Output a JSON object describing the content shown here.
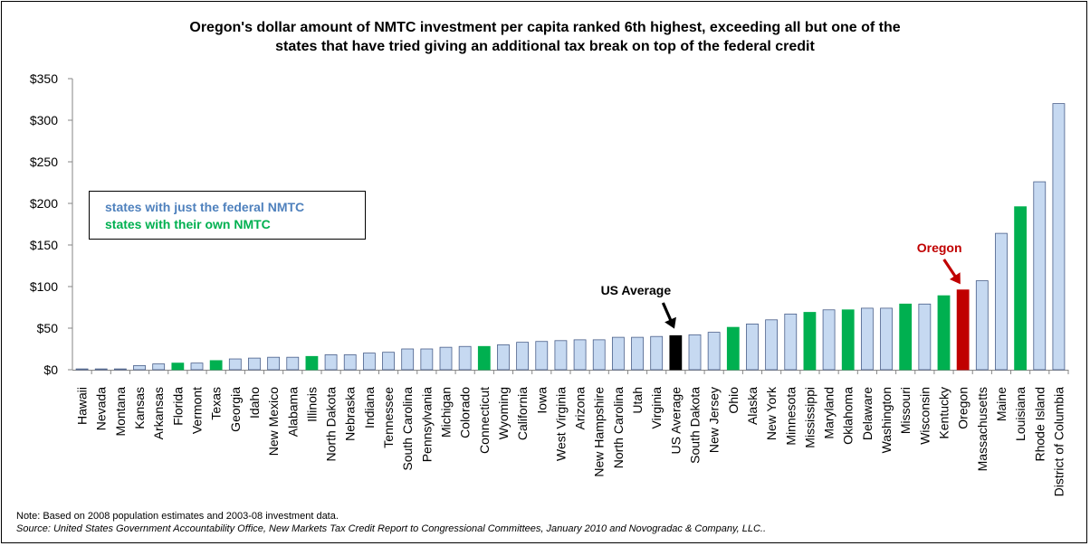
{
  "chart_data": {
    "type": "bar",
    "title": "Oregon's dollar amount of NMTC investment per capita ranked 6th highest, exceeding all but one of the states that have tried giving an additional tax break on top of the federal credit",
    "title_lines": [
      "Oregon's dollar amount of NMTC investment per capita ranked 6th highest, exceeding all but one of the",
      "states that have tried giving an additional tax break on top of the federal credit"
    ],
    "ylim": [
      0,
      350
    ],
    "yticks": [
      "$0",
      "$50",
      "$100",
      "$150",
      "$200",
      "$250",
      "$300",
      "$350"
    ],
    "ytick_values": [
      0,
      50,
      100,
      150,
      200,
      250,
      300,
      350
    ],
    "grid": false,
    "legend_placement": "upper-left",
    "legend": [
      {
        "label": "states with just the federal NMTC",
        "color": "#4f81bd"
      },
      {
        "label": "states with their own NMTC",
        "color": "#00b050"
      }
    ],
    "colors": {
      "federal_fill": "#c6d9f1",
      "federal_stroke": "#4a5f8a",
      "own": "#00b050",
      "average": "#000000",
      "oregon": "#c00000"
    },
    "categories": [
      {
        "name": "Hawaii",
        "value": 1,
        "group": "federal"
      },
      {
        "name": "Nevada",
        "value": 1,
        "group": "federal"
      },
      {
        "name": "Montana",
        "value": 1,
        "group": "federal"
      },
      {
        "name": "Kansas",
        "value": 5,
        "group": "federal"
      },
      {
        "name": "Arkansas",
        "value": 7,
        "group": "federal"
      },
      {
        "name": "Florida",
        "value": 8,
        "group": "own"
      },
      {
        "name": "Vermont",
        "value": 8,
        "group": "federal"
      },
      {
        "name": "Texas",
        "value": 11,
        "group": "own"
      },
      {
        "name": "Georgia",
        "value": 13,
        "group": "federal"
      },
      {
        "name": "Idaho",
        "value": 14,
        "group": "federal"
      },
      {
        "name": "New Mexico",
        "value": 15,
        "group": "federal"
      },
      {
        "name": "Alabama",
        "value": 15,
        "group": "federal"
      },
      {
        "name": "Illinois",
        "value": 16,
        "group": "own"
      },
      {
        "name": "North Dakota",
        "value": 18,
        "group": "federal"
      },
      {
        "name": "Nebraska",
        "value": 18,
        "group": "federal"
      },
      {
        "name": "Indiana",
        "value": 20,
        "group": "federal"
      },
      {
        "name": "Tennessee",
        "value": 21,
        "group": "federal"
      },
      {
        "name": "South Carolina",
        "value": 25,
        "group": "federal"
      },
      {
        "name": "Pennsylvania",
        "value": 25,
        "group": "federal"
      },
      {
        "name": "Michigan",
        "value": 27,
        "group": "federal"
      },
      {
        "name": "Colorado",
        "value": 28,
        "group": "federal"
      },
      {
        "name": "Connecticut",
        "value": 28,
        "group": "own"
      },
      {
        "name": "Wyoming",
        "value": 30,
        "group": "federal"
      },
      {
        "name": "California",
        "value": 33,
        "group": "federal"
      },
      {
        "name": "Iowa",
        "value": 34,
        "group": "federal"
      },
      {
        "name": "West Virginia",
        "value": 35,
        "group": "federal"
      },
      {
        "name": "Arizona",
        "value": 36,
        "group": "federal"
      },
      {
        "name": "New Hampshire",
        "value": 36,
        "group": "federal"
      },
      {
        "name": "North Carolina",
        "value": 39,
        "group": "federal"
      },
      {
        "name": "Utah",
        "value": 39,
        "group": "federal"
      },
      {
        "name": "Virginia",
        "value": 40,
        "group": "federal"
      },
      {
        "name": "US Average",
        "value": 41,
        "group": "average"
      },
      {
        "name": "South Dakota",
        "value": 42,
        "group": "federal"
      },
      {
        "name": "New Jersey",
        "value": 45,
        "group": "federal"
      },
      {
        "name": "Ohio",
        "value": 51,
        "group": "own"
      },
      {
        "name": "Alaska",
        "value": 55,
        "group": "federal"
      },
      {
        "name": "New York",
        "value": 60,
        "group": "federal"
      },
      {
        "name": "Minnesota",
        "value": 67,
        "group": "federal"
      },
      {
        "name": "Mississippi",
        "value": 69,
        "group": "own"
      },
      {
        "name": "Maryland",
        "value": 72,
        "group": "federal"
      },
      {
        "name": "Oklahoma",
        "value": 72,
        "group": "own"
      },
      {
        "name": "Delaware",
        "value": 74,
        "group": "federal"
      },
      {
        "name": "Washington",
        "value": 74,
        "group": "federal"
      },
      {
        "name": "Missouri",
        "value": 79,
        "group": "own"
      },
      {
        "name": "Wisconsin",
        "value": 79,
        "group": "federal"
      },
      {
        "name": "Kentucky",
        "value": 89,
        "group": "own"
      },
      {
        "name": "Oregon",
        "value": 96,
        "group": "oregon"
      },
      {
        "name": "Massachusetts",
        "value": 107,
        "group": "federal"
      },
      {
        "name": "Maine",
        "value": 164,
        "group": "federal"
      },
      {
        "name": "Louisiana",
        "value": 196,
        "group": "own"
      },
      {
        "name": "Rhode Island",
        "value": 226,
        "group": "federal"
      },
      {
        "name": "District of Columbia",
        "value": 320,
        "group": "federal"
      }
    ],
    "annotations": [
      {
        "text": "US Average",
        "target": "US Average",
        "color": "#000000"
      },
      {
        "text": "Oregon",
        "target": "Oregon",
        "color": "#c00000"
      }
    ]
  },
  "notes": {
    "note": "Note: Based on 2008 population estimates and 2003-08 investment data.",
    "source": "Source: United States Government Accountability Office, New Markets Tax Credit Report to Congressional Committees, January 2010 and Novogradac & Company, LLC.."
  }
}
